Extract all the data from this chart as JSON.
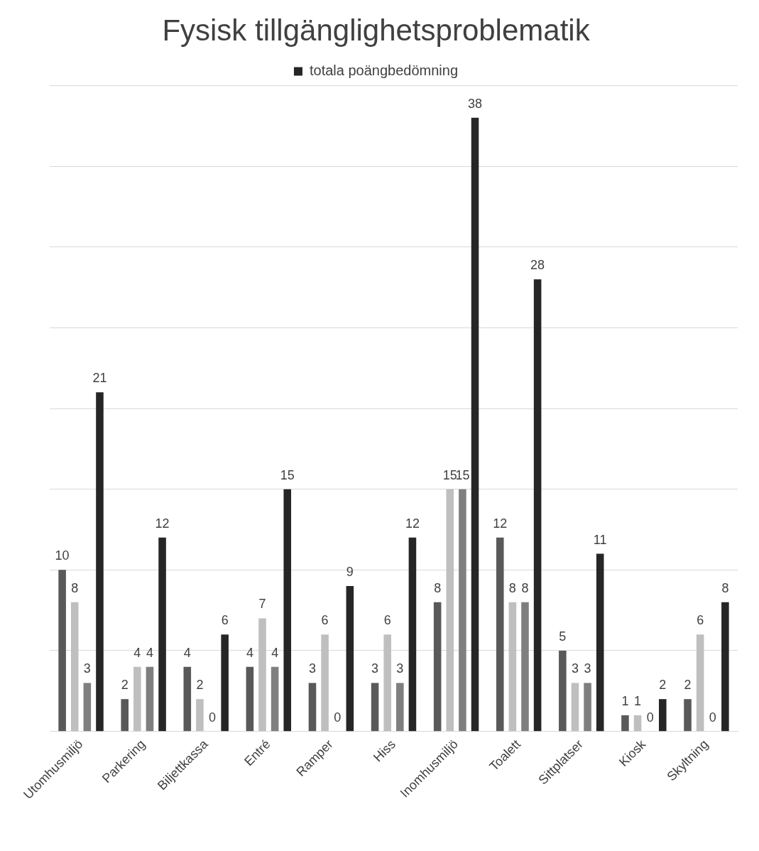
{
  "chart_data": {
    "type": "bar",
    "title": "Fysisk tillgänglighetsproblematik",
    "categories": [
      "Utomhusmiljö",
      "Parkering",
      "Biljettkassa",
      "Entré",
      "Ramper",
      "Hiss",
      "Inomhusmiljö",
      "Toalett",
      "Sittplatser",
      "Kiosk",
      "Skyltning"
    ],
    "series": [
      {
        "color": "#595959",
        "values": [
          10,
          2,
          4,
          4,
          3,
          3,
          8,
          12,
          5,
          1,
          2
        ]
      },
      {
        "color": "#bfbfbf",
        "values": [
          8,
          4,
          2,
          7,
          6,
          6,
          15,
          8,
          3,
          1,
          6
        ]
      },
      {
        "color": "#7f7f7f",
        "values": [
          3,
          4,
          0,
          4,
          0,
          3,
          15,
          8,
          3,
          0,
          0
        ]
      },
      {
        "name": "totala poängbedömning",
        "color": "#262626",
        "values": [
          21,
          12,
          6,
          15,
          9,
          12,
          38,
          28,
          11,
          2,
          8
        ]
      }
    ],
    "ylim": [
      0,
      40
    ],
    "yticks": [
      {
        "value": 0,
        "label": null
      },
      {
        "value": 5,
        "label": null
      },
      {
        "value": 10,
        "label": null
      },
      {
        "value": 15,
        "label": null
      },
      {
        "value": 20,
        "label": null
      },
      {
        "value": 25,
        "label": null
      },
      {
        "value": 30,
        "label": null
      },
      {
        "value": 35,
        "label": null
      },
      {
        "value": 40,
        "label": null
      }
    ],
    "tick_labels": "x",
    "grid": "y",
    "legend": "top",
    "data_labels": true
  }
}
